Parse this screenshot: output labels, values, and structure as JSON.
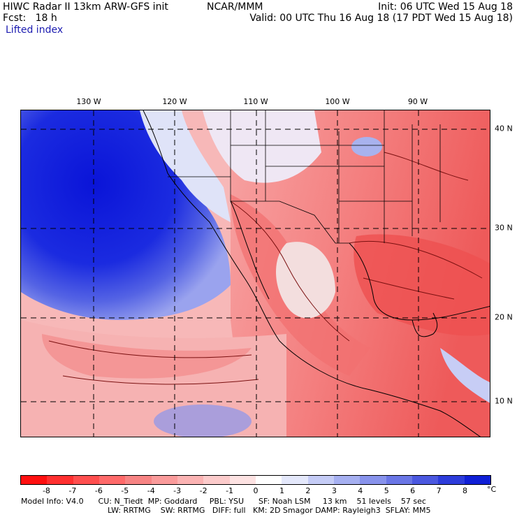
{
  "header": {
    "title": "HIWC Radar II 13km ARW-GFS init",
    "org": "NCAR/MMM",
    "fcst": "Fcst:   18 h",
    "field": "Lifted index",
    "init": "Init: 06 UTC Wed 15 Aug 18",
    "valid": "Valid: 00 UTC Thu 16 Aug 18 (17 PDT Wed 15 Aug 18)"
  },
  "axes": {
    "lon_labels": [
      "130 W",
      "120 W",
      "110 W",
      "100 W",
      "90 W"
    ],
    "lat_labels": [
      "40 N",
      "30 N",
      "20 N",
      "10 N"
    ]
  },
  "colorbar": {
    "labels": [
      "-8",
      "-7",
      "-6",
      "-5",
      "-4",
      "-3",
      "-2",
      "-1",
      "0",
      "1",
      "2",
      "3",
      "4",
      "5",
      "6",
      "7",
      "8"
    ],
    "unit": "°C",
    "colors": [
      "#ff1010",
      "#ff3030",
      "#ff4f4f",
      "#ff6a6a",
      "#f78484",
      "#fa9b9b",
      "#fbb3b3",
      "#fccbcb",
      "#fde2e2",
      "#ffffff",
      "#e4e8fb",
      "#c5ccf6",
      "#a6b0f1",
      "#8893ec",
      "#6a76e6",
      "#4b58e0",
      "#2d3cdb",
      "#0f1fd6"
    ]
  },
  "footer": {
    "line1": "Model Info: V4.0      CU: N_Tiedt  MP: Goddard     PBL: YSU      SF: Noah LSM     13 km    51 levels    57 sec",
    "line2": "LW: RRTMG    SW: RRTMG   DIFF: full   KM: 2D Smagor DAMP: Rayleigh3  SFLAY: MM5"
  },
  "colors": {
    "field_negative": "#f27a7a",
    "field_positive": "#1e2fe0",
    "field_label": "#1a1ab0"
  }
}
